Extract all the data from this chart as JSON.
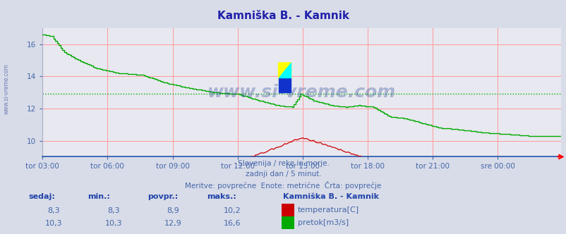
{
  "title": "Kamniška B. - Kamnik",
  "title_color": "#2020aa",
  "bg_color": "#d8dce8",
  "plot_bg_color": "#e8e8f0",
  "grid_color": "#ff9999",
  "xlabel_color": "#4466aa",
  "watermark": "www.si-vreme.com",
  "subtitle_lines": [
    "Slovenija / reke in morje.",
    "zadnji dan / 5 minut.",
    "Meritve: povprečne  Enote: metrične  Črta: povprečje"
  ],
  "xtick_labels": [
    "tor 03:00",
    "tor 06:00",
    "tor 09:00",
    "tor 12:00",
    "tor 15:00",
    "tor 18:00",
    "tor 21:00",
    "sre 00:00"
  ],
  "xtick_positions": [
    0,
    36,
    72,
    108,
    144,
    180,
    216,
    252
  ],
  "ylim": [
    9.0,
    17.0
  ],
  "yticks": [
    10,
    12,
    14,
    16
  ],
  "temp_color": "#cc0000",
  "flow_color": "#00aa00",
  "avg_temp": 8.9,
  "avg_flow": 12.9,
  "temp_min": 8.3,
  "temp_max": 10.2,
  "flow_min": 10.3,
  "flow_max": 16.6,
  "temp_sedaj": 8.3,
  "flow_sedaj": 10.3,
  "temp_min_display": 8.3,
  "flow_min_display": 10.3,
  "total_points": 288
}
